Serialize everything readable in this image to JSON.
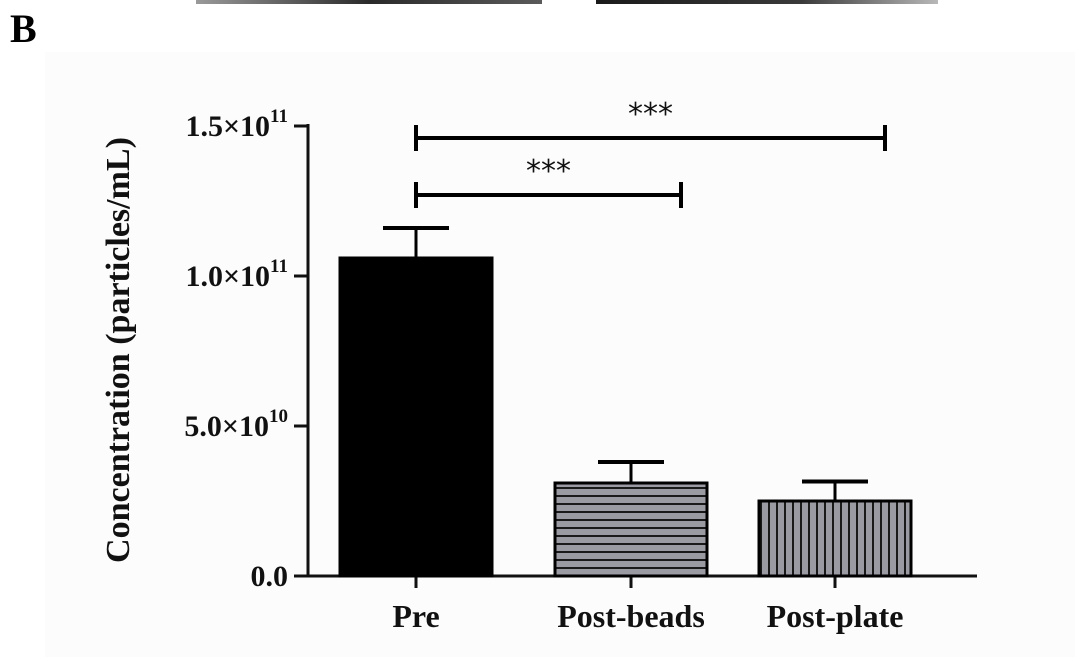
{
  "panel_label": "B",
  "colors": {
    "axis": "#111111",
    "pre_fill": "#000000",
    "hatch_fill": "#9a9aa2",
    "hatch_line": "#1a1a1a",
    "background": "#fcfcfc"
  },
  "chart_data": {
    "type": "bar",
    "title": "",
    "ylabel": "Concentration (particles/mL)",
    "xlabel": "",
    "categories": [
      "Pre",
      "Post-beads",
      "Post-plate"
    ],
    "values": [
      106000000000.0,
      31000000000.0,
      25000000000.0
    ],
    "errors": [
      10000000000.0,
      7000000000.0,
      6500000000.0
    ],
    "patterns": [
      "solid",
      "horizontal-stripes",
      "vertical-stripes"
    ],
    "ylim": [
      0,
      150000000000.0
    ],
    "yticks": [
      {
        "value": 0,
        "mantissa": "0.0",
        "exponent": ""
      },
      {
        "value": 50000000000.0,
        "mantissa": "5.0×10",
        "exponent": "10"
      },
      {
        "value": 100000000000.0,
        "mantissa": "1.0×10",
        "exponent": "11"
      },
      {
        "value": 150000000000.0,
        "mantissa": "1.5×10",
        "exponent": "11"
      }
    ],
    "grid": false,
    "legend": "none",
    "significance": [
      {
        "from": 0,
        "to": 1,
        "level": 127000000000.0,
        "label": "***"
      },
      {
        "from": 0,
        "to": 2,
        "level": 146000000000.0,
        "label": "***"
      }
    ]
  }
}
